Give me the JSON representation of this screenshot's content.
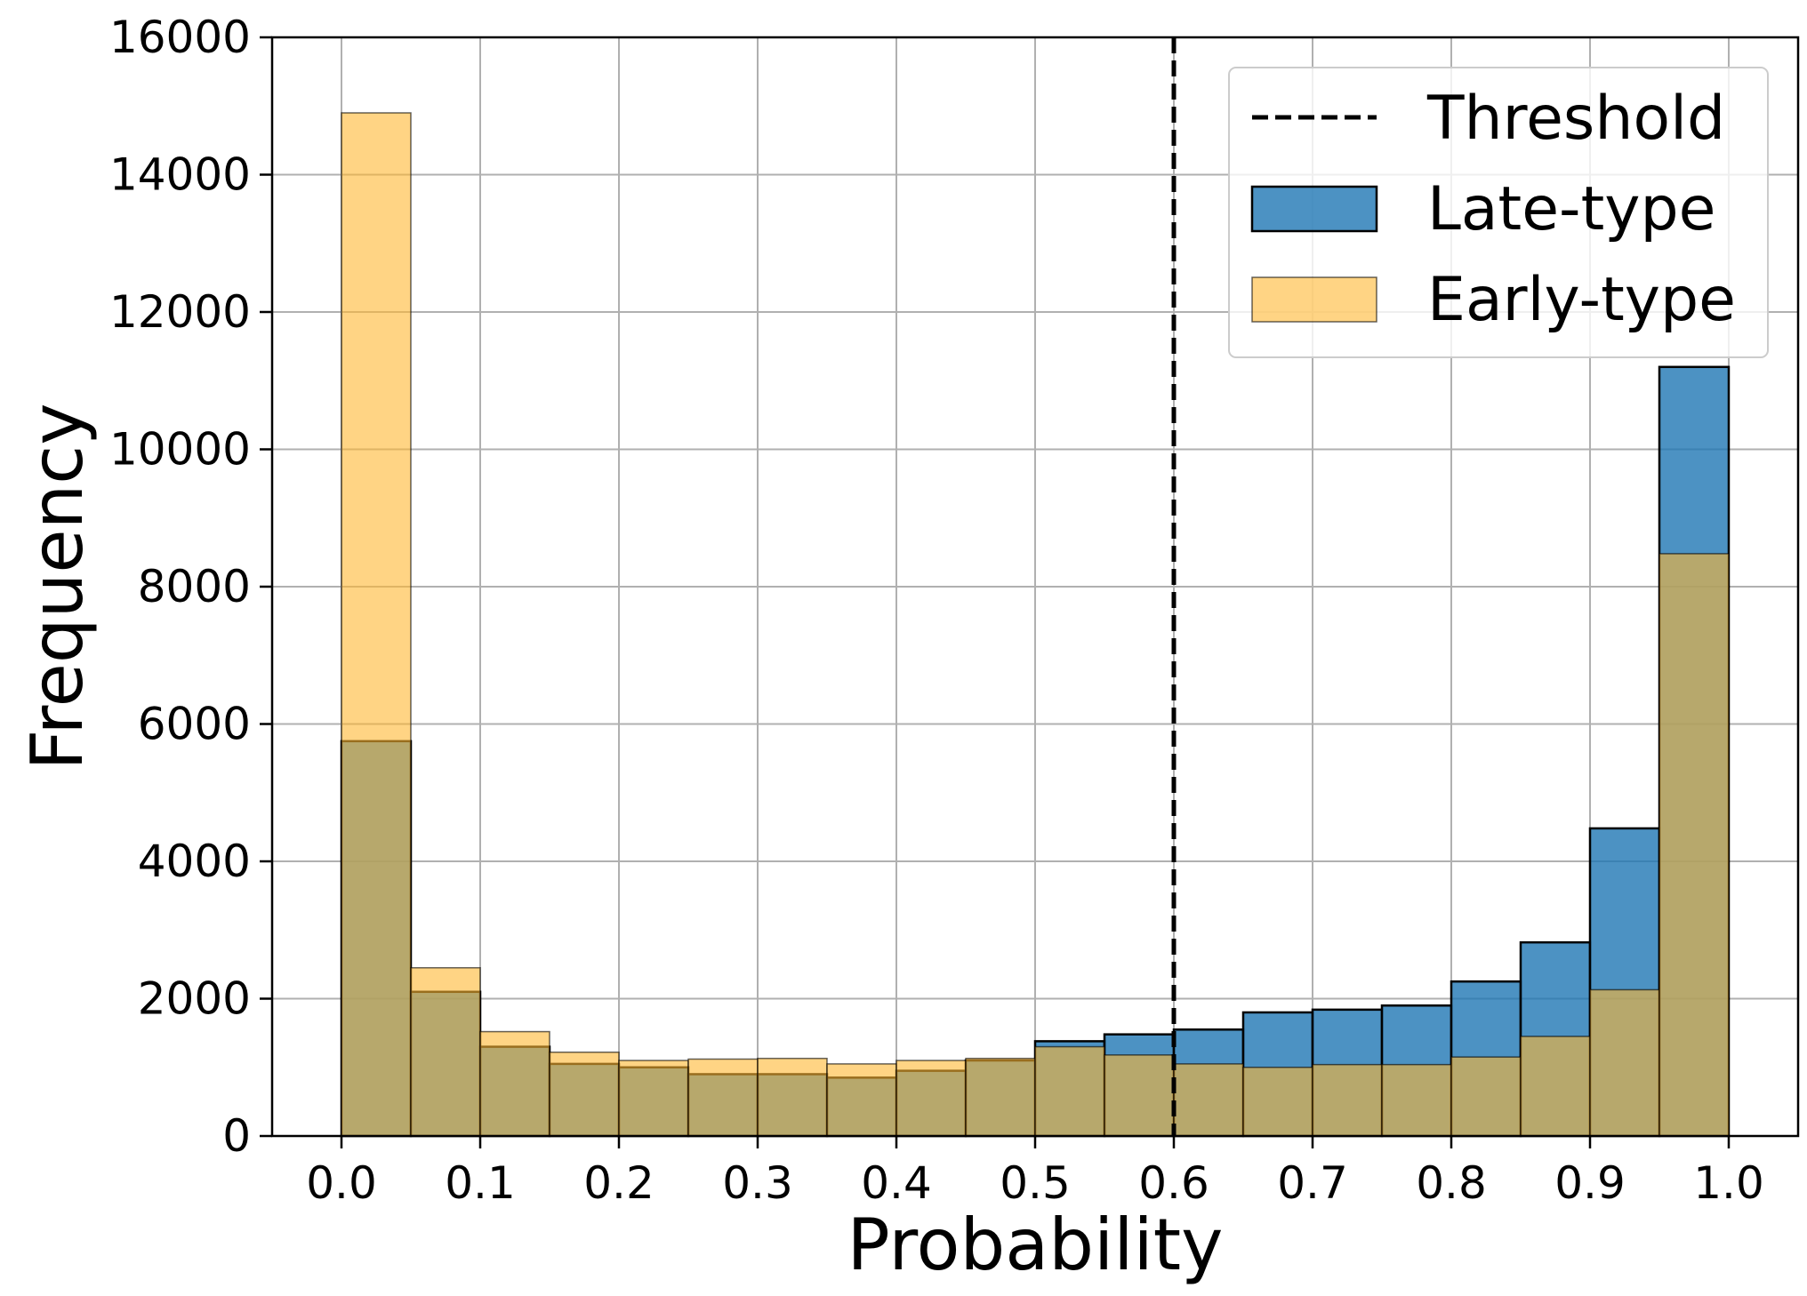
{
  "chart_data": {
    "type": "bar",
    "xlabel": "Probability",
    "ylabel": "Frequency",
    "xlim": [
      -0.05,
      1.05
    ],
    "ylim": [
      0,
      16000
    ],
    "grid": true,
    "legend_position": "top-right",
    "x_ticks": [
      "0.0",
      "0.1",
      "0.2",
      "0.3",
      "0.4",
      "0.5",
      "0.6",
      "0.7",
      "0.8",
      "0.9",
      "1.0"
    ],
    "y_ticks": [
      "0",
      "2000",
      "4000",
      "6000",
      "8000",
      "10000",
      "12000",
      "14000",
      "16000"
    ],
    "bin_edges": [
      0.0,
      0.05,
      0.1,
      0.15,
      0.2,
      0.25,
      0.3,
      0.35,
      0.4,
      0.45,
      0.5,
      0.55,
      0.6,
      0.65,
      0.7,
      0.75,
      0.8,
      0.85,
      0.9,
      0.95,
      1.0
    ],
    "series": [
      {
        "name": "Late-type",
        "color": "#1f77b4",
        "values": [
          5750,
          2100,
          1300,
          1050,
          1000,
          900,
          900,
          850,
          950,
          1100,
          1380,
          1480,
          1550,
          1800,
          1840,
          1900,
          2250,
          2820,
          4480,
          11200
        ]
      },
      {
        "name": "Early-type",
        "color": "#ffb732",
        "values": [
          14900,
          2450,
          1520,
          1220,
          1100,
          1120,
          1130,
          1050,
          1100,
          1130,
          1300,
          1180,
          1050,
          1000,
          1040,
          1040,
          1150,
          1450,
          2130,
          8480
        ]
      }
    ],
    "threshold": {
      "name": "Threshold",
      "x": 0.6,
      "color": "#000000"
    }
  }
}
